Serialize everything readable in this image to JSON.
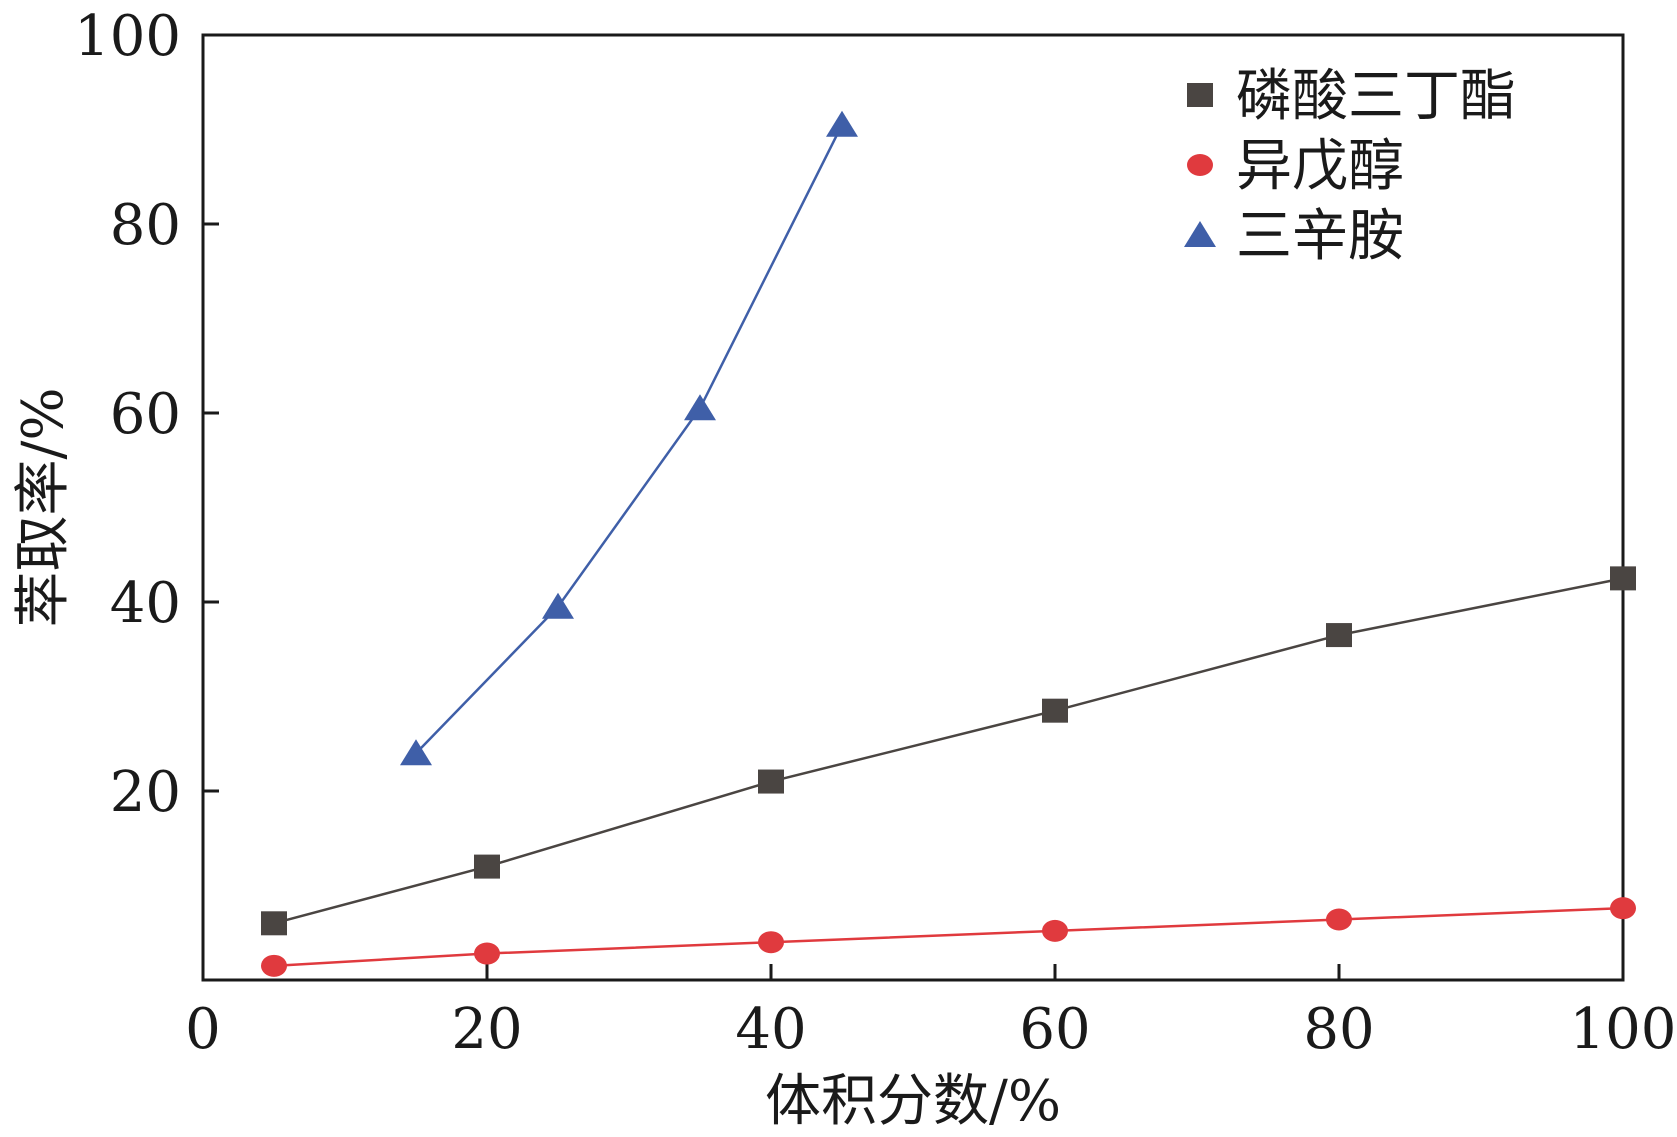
{
  "chart_data": {
    "type": "line",
    "xlabel": "体积分数/%",
    "ylabel": "萃取率/%",
    "xlim": [
      0,
      100
    ],
    "ylim": [
      0,
      100
    ],
    "x_ticks": [
      0,
      20,
      40,
      60,
      80,
      100
    ],
    "y_ticks": [
      20,
      40,
      60,
      80,
      100
    ],
    "legend_position": "top-right",
    "grid": false,
    "series": [
      {
        "name": "磷酸三丁酯",
        "color": "#4a4542",
        "marker": "square",
        "x": [
          5,
          20,
          40,
          60,
          80,
          100
        ],
        "y": [
          6,
          12,
          21,
          28.5,
          36.5,
          42.5
        ]
      },
      {
        "name": "异戊醇",
        "color": "#e03a3e",
        "marker": "circle",
        "x": [
          5,
          20,
          40,
          60,
          80,
          100
        ],
        "y": [
          1.5,
          2.8,
          4,
          5.2,
          6.4,
          7.6
        ]
      },
      {
        "name": "三辛胺",
        "color": "#3f5fa8",
        "marker": "triangle",
        "x": [
          15,
          25,
          35,
          45
        ],
        "y": [
          24,
          39.5,
          60.5,
          90.5
        ]
      }
    ]
  }
}
